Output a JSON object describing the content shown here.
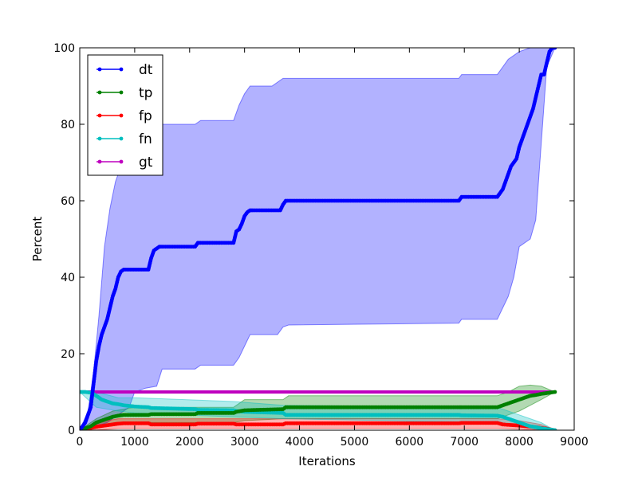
{
  "chart_data": {
    "type": "line",
    "title": "",
    "xlabel": "Iterations",
    "ylabel": "Percent",
    "xlim": [
      0,
      9000
    ],
    "ylim": [
      0,
      100
    ],
    "xticks": [
      0,
      1000,
      2000,
      3000,
      4000,
      5000,
      6000,
      7000,
      8000,
      9000
    ],
    "yticks": [
      0,
      20,
      40,
      60,
      80,
      100
    ],
    "grid": false,
    "legend_position": "top-left",
    "series": [
      {
        "name": "dt",
        "color": "#0000ff",
        "band_color": "#0000ff",
        "band_opacity": 0.3,
        "x": [
          0,
          100,
          200,
          250,
          300,
          350,
          400,
          450,
          500,
          550,
          600,
          650,
          700,
          750,
          800,
          1250,
          1300,
          1350,
          1400,
          1450,
          1500,
          2100,
          2150,
          2200,
          2800,
          2850,
          2900,
          2950,
          3000,
          3050,
          3100,
          3150,
          3650,
          3700,
          3750,
          6900,
          6950,
          7600,
          7650,
          7700,
          7750,
          7800,
          7850,
          7900,
          7950,
          8000,
          8050,
          8100,
          8150,
          8200,
          8250,
          8300,
          8350,
          8400,
          8450,
          8500,
          8550,
          8600,
          8650
        ],
        "y": [
          0,
          2,
          6,
          12,
          18,
          22,
          25,
          27,
          29,
          32,
          35,
          37,
          40,
          41.5,
          42,
          42,
          45,
          47,
          47.5,
          48,
          48,
          48,
          49,
          49,
          49,
          52,
          52.5,
          54,
          56,
          57,
          57.5,
          57.5,
          57.5,
          59,
          60,
          60,
          61,
          61,
          62,
          63,
          65,
          67,
          69,
          70,
          71,
          74,
          76,
          78,
          80,
          82,
          84,
          87,
          90,
          93,
          93,
          96,
          99,
          100,
          100
        ],
        "upper_x": [
          0,
          150,
          250,
          350,
          450,
          550,
          650,
          750,
          1000,
          1500,
          2100,
          2200,
          2800,
          2900,
          3000,
          3100,
          3500,
          3700,
          3800,
          6900,
          6950,
          7600,
          7700,
          7800,
          8000,
          8200,
          8650
        ],
        "upper_y": [
          0,
          5,
          15,
          30,
          48,
          58,
          65,
          69,
          72,
          80,
          80,
          81,
          81,
          85,
          88,
          90,
          90,
          92,
          92,
          92,
          93,
          93,
          95,
          97,
          99,
          100,
          100
        ],
        "lower_x": [
          0,
          300,
          500,
          700,
          900,
          1000,
          1200,
          1400,
          1500,
          2100,
          2200,
          2800,
          2900,
          3000,
          3100,
          3600,
          3700,
          3800,
          6900,
          6950,
          7600,
          7700,
          7800,
          7900,
          8000,
          8200,
          8300,
          8400,
          8500,
          8650
        ],
        "lower_y": [
          0,
          1,
          2,
          4,
          6,
          10,
          11,
          11.5,
          16,
          16,
          17,
          17,
          19,
          22,
          25,
          25,
          27,
          27.5,
          28,
          29,
          29,
          32,
          35,
          40,
          48,
          50,
          55,
          75,
          95,
          100
        ]
      },
      {
        "name": "tp",
        "color": "#008000",
        "band_color": "#008000",
        "band_opacity": 0.3,
        "x": [
          0,
          200,
          300,
          400,
          500,
          600,
          700,
          800,
          1250,
          1300,
          2100,
          2150,
          2800,
          2850,
          3000,
          3700,
          3750,
          6900,
          6950,
          7600,
          7700,
          7800,
          7900,
          8000,
          8100,
          8200,
          8300,
          8400,
          8500,
          8600,
          8650
        ],
        "y": [
          0,
          1,
          2,
          2.5,
          3,
          3.5,
          3.8,
          4,
          4,
          4.2,
          4.2,
          4.5,
          4.5,
          4.8,
          5.2,
          5.5,
          6,
          6,
          6,
          6,
          6.5,
          7,
          7.5,
          8,
          8.5,
          9,
          9.2,
          9.5,
          9.7,
          9.9,
          10
        ],
        "upper_x": [
          0,
          300,
          600,
          1000,
          2800,
          3000,
          3700,
          3800,
          7600,
          7800,
          8000,
          8200,
          8400,
          8650
        ],
        "upper_y": [
          0,
          3,
          5,
          6,
          6,
          8,
          8,
          9,
          9,
          10,
          11.5,
          11.8,
          11.5,
          10
        ],
        "lower_x": [
          0,
          300,
          600,
          1000,
          2800,
          3000,
          3700,
          3800,
          7600,
          7800,
          8000,
          8200,
          8400,
          8650
        ],
        "lower_y": [
          0,
          0.5,
          1.5,
          2,
          2,
          2.5,
          3,
          3,
          3,
          4,
          5,
          6.5,
          8,
          10
        ]
      },
      {
        "name": "fp",
        "color": "#ff0000",
        "band_color": "#ff0000",
        "band_opacity": 0.3,
        "x": [
          0,
          100,
          200,
          300,
          400,
          500,
          600,
          700,
          800,
          1250,
          1300,
          2100,
          2150,
          2800,
          2850,
          3700,
          3750,
          6900,
          6950,
          7600,
          7700,
          8000,
          8300,
          8500,
          8600,
          8650
        ],
        "y": [
          0,
          0.3,
          0.6,
          0.9,
          1.1,
          1.3,
          1.5,
          1.7,
          1.8,
          1.8,
          1.5,
          1.5,
          1.7,
          1.7,
          1.5,
          1.5,
          1.8,
          1.8,
          1.9,
          1.9,
          1.5,
          1.2,
          0.8,
          0.4,
          0.1,
          0
        ],
        "upper_x": [
          0,
          300,
          700,
          2800,
          3700,
          7600,
          8000,
          8400,
          8650
        ],
        "upper_y": [
          0,
          2,
          3,
          3,
          3,
          3,
          2.5,
          1.5,
          0
        ],
        "lower_x": [
          0,
          300,
          700,
          2800,
          3700,
          7600,
          8000,
          8400,
          8650
        ],
        "lower_y": [
          0,
          0,
          0.5,
          0.5,
          0.5,
          0.5,
          0.3,
          0,
          0
        ]
      },
      {
        "name": "fn",
        "color": "#00bfbf",
        "band_color": "#00bfbf",
        "band_opacity": 0.3,
        "x": [
          0,
          100,
          200,
          250,
          300,
          400,
          500,
          600,
          700,
          800,
          1000,
          1250,
          1300,
          2100,
          2150,
          2800,
          2850,
          3000,
          3700,
          3750,
          6900,
          6950,
          7600,
          7700,
          7800,
          7900,
          8000,
          8100,
          8200,
          8300,
          8400,
          8500,
          8600,
          8650
        ],
        "y": [
          10,
          10,
          9.8,
          9.5,
          9,
          8,
          7.5,
          7,
          6.8,
          6.5,
          6.2,
          6,
          5.8,
          5.5,
          5.3,
          5.2,
          5,
          4.8,
          4.5,
          4,
          4,
          3.9,
          3.8,
          3.5,
          3,
          2.5,
          2,
          1.5,
          1,
          0.8,
          0.5,
          0.3,
          0.1,
          0
        ],
        "upper_x": [
          0,
          300,
          700,
          1000,
          2800,
          3700,
          7600,
          7800,
          8000,
          8200,
          8400,
          8650
        ],
        "upper_y": [
          10,
          10,
          8.5,
          8.5,
          7.5,
          6.5,
          6,
          5,
          4,
          3,
          2,
          0
        ],
        "lower_x": [
          0,
          300,
          700,
          1000,
          2800,
          3700,
          7600,
          7800,
          8000,
          8200,
          8400,
          8650
        ],
        "lower_y": [
          10,
          6,
          5,
          4.5,
          3.5,
          3,
          2,
          1.5,
          1,
          0.5,
          0,
          0
        ]
      },
      {
        "name": "gt",
        "color": "#bf00bf",
        "x": [
          0,
          8650
        ],
        "y": [
          10,
          10
        ]
      }
    ]
  }
}
